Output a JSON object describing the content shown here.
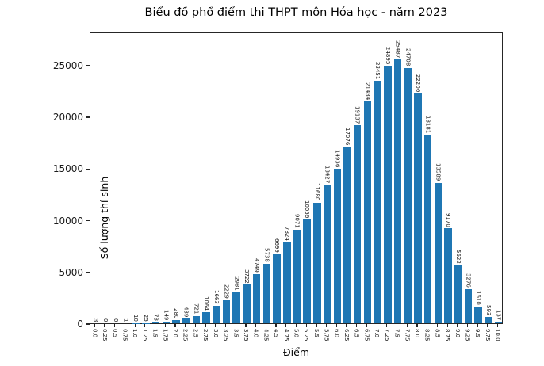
{
  "chart_data": {
    "type": "bar",
    "title": "Biểu đồ phổ điểm thi THPT môn Hóa học - năm 2023",
    "xlabel": "Điểm",
    "ylabel": "Số lượng thí sinh",
    "categories": [
      "0.0",
      "0.25",
      "0.5",
      "0.75",
      "1.0",
      "1.25",
      "1.5",
      "1.75",
      "2.0",
      "2.25",
      "2.5",
      "2.75",
      "3.0",
      "3.25",
      "3.5",
      "3.75",
      "4.0",
      "4.25",
      "4.5",
      "4.75",
      "5.0",
      "5.25",
      "5.5",
      "5.75",
      "6.0",
      "6.25",
      "6.5",
      "6.75",
      "7.0",
      "7.25",
      "7.5",
      "7.75",
      "8.0",
      "8.25",
      "8.5",
      "8.75",
      "9.0",
      "9.25",
      "9.5",
      "9.75",
      "10.0"
    ],
    "values": [
      3,
      0,
      0,
      1,
      10,
      25,
      78,
      149,
      280,
      439,
      721,
      1064,
      1663,
      2229,
      2981,
      3722,
      4749,
      5738,
      6699,
      7824,
      9071,
      10056,
      11680,
      13427,
      14936,
      17076,
      19137,
      21434,
      23451,
      24895,
      25487,
      24708,
      22206,
      18181,
      13589,
      9170,
      5622,
      3276,
      1610,
      593,
      137
    ],
    "y_ticks": [
      0,
      5000,
      10000,
      15000,
      20000,
      25000
    ],
    "ylim": [
      0,
      28200
    ],
    "bar_color": "#1f77b4",
    "show_value_labels": true,
    "grid": false,
    "legend": "none"
  }
}
